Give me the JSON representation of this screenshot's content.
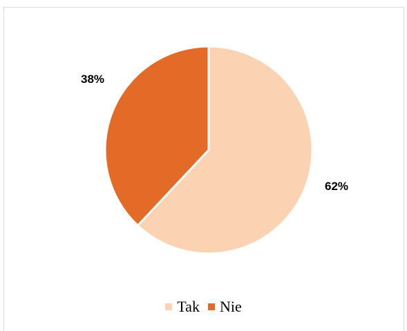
{
  "chart_data": {
    "type": "pie",
    "title": "",
    "categories": [
      "Tak",
      "Nie"
    ],
    "values": [
      62,
      38
    ],
    "data_labels": [
      "62%",
      "38%"
    ],
    "colors": [
      "#FBD3B3",
      "#E46B27"
    ],
    "start_angle_deg": 0,
    "direction": "clockwise",
    "legend_position": "bottom"
  }
}
